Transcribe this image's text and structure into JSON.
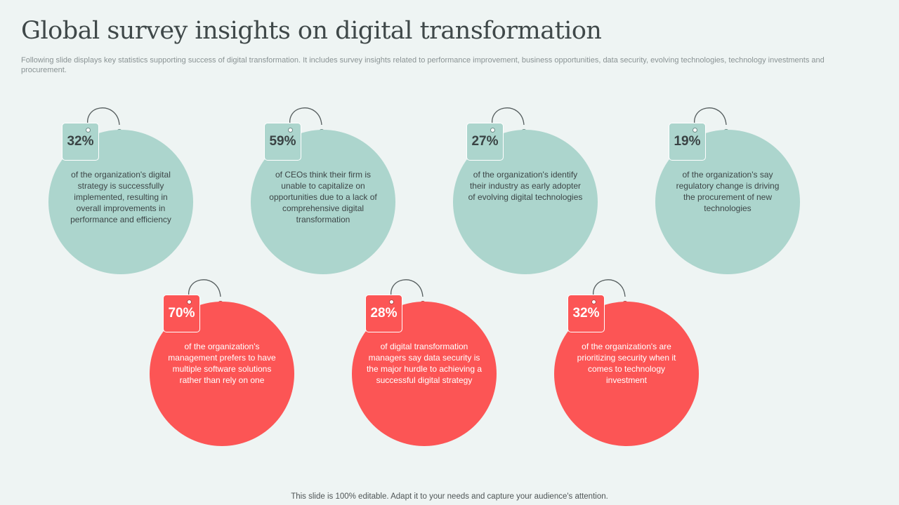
{
  "header": {
    "title": "Global survey insights on digital transformation",
    "subtitle": "Following slide displays key statistics supporting success of digital transformation. It includes survey insights related to performance improvement, business opportunities, data security, evolving technologies, technology investments and procurement."
  },
  "stats": [
    {
      "percent": "32%",
      "text": "of the organization's digital strategy is successfully implemented, resulting in overall improvements in performance and efficiency"
    },
    {
      "percent": "59%",
      "text": "of CEOs think their firm is unable to capitalize on opportunities due to a lack of comprehensive digital transformation"
    },
    {
      "percent": "27%",
      "text": "of the organization's identify their industry as early adopter of evolving digital technologies"
    },
    {
      "percent": "19%",
      "text": "of the organization's say regulatory change is driving the procurement of new technologies"
    },
    {
      "percent": "70%",
      "text": "of the organization's management prefers to have multiple software solutions rather than rely on one"
    },
    {
      "percent": "28%",
      "text": "of digital transformation managers say data security is the major hurdle to achieving a successful digital strategy"
    },
    {
      "percent": "32%",
      "text": "of the organization's are prioritizing security when it comes to technology investment"
    }
  ],
  "colors": {
    "teal": "#acd5cd",
    "red": "#fc5555",
    "background": "#eef4f3"
  },
  "footer": {
    "text": "This slide is 100% editable. Adapt it to your needs and capture your audience's attention."
  }
}
